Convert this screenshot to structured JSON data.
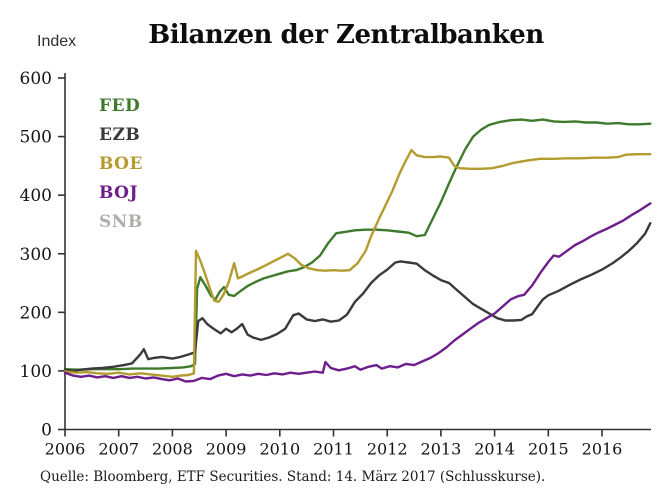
{
  "chart_data": {
    "type": "line",
    "title": "Bilanzen der Zentralbanken",
    "y_unit_label": "Index",
    "source_note": "Quelle: Bloomberg, ETF Securities. Stand: 14. März 2017 (Schlusskurse).",
    "grid": false,
    "legend_position": "top-left-inside",
    "x_axis": {
      "ticks": [
        2006,
        2007,
        2008,
        2009,
        2010,
        2011,
        2012,
        2013,
        2014,
        2015,
        2016
      ],
      "range": [
        2006,
        2016.95
      ]
    },
    "y_axis": {
      "ticks": [
        0,
        100,
        200,
        300,
        400,
        500,
        600
      ],
      "range": [
        0,
        600
      ]
    },
    "series": [
      {
        "name": "FED",
        "color": "#3e7a2c",
        "points": [
          [
            2006.0,
            103
          ],
          [
            2006.25,
            102
          ],
          [
            2006.5,
            103
          ],
          [
            2006.75,
            103
          ],
          [
            2007.0,
            103
          ],
          [
            2007.25,
            104
          ],
          [
            2007.5,
            104
          ],
          [
            2007.75,
            104
          ],
          [
            2008.0,
            105
          ],
          [
            2008.2,
            106
          ],
          [
            2008.35,
            108
          ],
          [
            2008.42,
            112
          ],
          [
            2008.46,
            240
          ],
          [
            2008.52,
            260
          ],
          [
            2008.62,
            245
          ],
          [
            2008.72,
            228
          ],
          [
            2008.8,
            222
          ],
          [
            2008.88,
            235
          ],
          [
            2008.96,
            243
          ],
          [
            2009.05,
            230
          ],
          [
            2009.15,
            228
          ],
          [
            2009.25,
            235
          ],
          [
            2009.4,
            245
          ],
          [
            2009.55,
            252
          ],
          [
            2009.7,
            258
          ],
          [
            2009.85,
            262
          ],
          [
            2010.0,
            266
          ],
          [
            2010.15,
            270
          ],
          [
            2010.3,
            272
          ],
          [
            2010.45,
            277
          ],
          [
            2010.6,
            285
          ],
          [
            2010.75,
            297
          ],
          [
            2010.9,
            318
          ],
          [
            2011.05,
            335
          ],
          [
            2011.2,
            337
          ],
          [
            2011.4,
            340
          ],
          [
            2011.6,
            341
          ],
          [
            2011.8,
            341
          ],
          [
            2012.0,
            340
          ],
          [
            2012.2,
            338
          ],
          [
            2012.4,
            336
          ],
          [
            2012.55,
            330
          ],
          [
            2012.7,
            332
          ],
          [
            2012.85,
            360
          ],
          [
            2013.0,
            388
          ],
          [
            2013.15,
            420
          ],
          [
            2013.3,
            450
          ],
          [
            2013.45,
            478
          ],
          [
            2013.6,
            500
          ],
          [
            2013.75,
            512
          ],
          [
            2013.9,
            520
          ],
          [
            2014.1,
            525
          ],
          [
            2014.3,
            528
          ],
          [
            2014.5,
            529
          ],
          [
            2014.7,
            527
          ],
          [
            2014.9,
            529
          ],
          [
            2015.1,
            526
          ],
          [
            2015.3,
            525
          ],
          [
            2015.5,
            526
          ],
          [
            2015.7,
            524
          ],
          [
            2015.9,
            524
          ],
          [
            2016.1,
            522
          ],
          [
            2016.3,
            523
          ],
          [
            2016.5,
            521
          ],
          [
            2016.7,
            521
          ],
          [
            2016.9,
            522
          ]
        ]
      },
      {
        "name": "EZB",
        "color": "#3a393b",
        "points": [
          [
            2006.0,
            102
          ],
          [
            2006.15,
            100
          ],
          [
            2006.3,
            102
          ],
          [
            2006.5,
            104
          ],
          [
            2006.7,
            105
          ],
          [
            2006.9,
            107
          ],
          [
            2007.1,
            110
          ],
          [
            2007.25,
            113
          ],
          [
            2007.4,
            128
          ],
          [
            2007.47,
            137
          ],
          [
            2007.55,
            120
          ],
          [
            2007.65,
            122
          ],
          [
            2007.8,
            124
          ],
          [
            2008.0,
            121
          ],
          [
            2008.15,
            124
          ],
          [
            2008.3,
            128
          ],
          [
            2008.42,
            132
          ],
          [
            2008.48,
            185
          ],
          [
            2008.56,
            190
          ],
          [
            2008.65,
            180
          ],
          [
            2008.78,
            171
          ],
          [
            2008.9,
            164
          ],
          [
            2009.0,
            172
          ],
          [
            2009.1,
            166
          ],
          [
            2009.2,
            172
          ],
          [
            2009.3,
            180
          ],
          [
            2009.4,
            162
          ],
          [
            2009.5,
            157
          ],
          [
            2009.65,
            153
          ],
          [
            2009.8,
            157
          ],
          [
            2009.95,
            163
          ],
          [
            2010.1,
            172
          ],
          [
            2010.25,
            195
          ],
          [
            2010.35,
            198
          ],
          [
            2010.5,
            188
          ],
          [
            2010.65,
            185
          ],
          [
            2010.8,
            188
          ],
          [
            2010.95,
            184
          ],
          [
            2011.1,
            186
          ],
          [
            2011.25,
            196
          ],
          [
            2011.4,
            218
          ],
          [
            2011.55,
            232
          ],
          [
            2011.7,
            250
          ],
          [
            2011.85,
            263
          ],
          [
            2012.0,
            273
          ],
          [
            2012.15,
            285
          ],
          [
            2012.25,
            287
          ],
          [
            2012.4,
            285
          ],
          [
            2012.55,
            283
          ],
          [
            2012.7,
            272
          ],
          [
            2012.85,
            263
          ],
          [
            2013.0,
            255
          ],
          [
            2013.15,
            250
          ],
          [
            2013.3,
            238
          ],
          [
            2013.45,
            226
          ],
          [
            2013.6,
            214
          ],
          [
            2013.75,
            206
          ],
          [
            2013.9,
            198
          ],
          [
            2014.05,
            190
          ],
          [
            2014.2,
            186
          ],
          [
            2014.35,
            186
          ],
          [
            2014.5,
            187
          ],
          [
            2014.6,
            193
          ],
          [
            2014.7,
            197
          ],
          [
            2014.8,
            210
          ],
          [
            2014.9,
            222
          ],
          [
            2015.0,
            229
          ],
          [
            2015.2,
            237
          ],
          [
            2015.4,
            247
          ],
          [
            2015.6,
            256
          ],
          [
            2015.8,
            264
          ],
          [
            2016.0,
            273
          ],
          [
            2016.2,
            284
          ],
          [
            2016.35,
            294
          ],
          [
            2016.5,
            305
          ],
          [
            2016.65,
            318
          ],
          [
            2016.8,
            334
          ],
          [
            2016.9,
            352
          ]
        ]
      },
      {
        "name": "BOE",
        "color": "#b49b30",
        "points": [
          [
            2006.0,
            99
          ],
          [
            2006.2,
            97
          ],
          [
            2006.4,
            98
          ],
          [
            2006.6,
            96
          ],
          [
            2006.8,
            95
          ],
          [
            2007.0,
            97
          ],
          [
            2007.2,
            94
          ],
          [
            2007.4,
            96
          ],
          [
            2007.6,
            94
          ],
          [
            2007.8,
            92
          ],
          [
            2008.0,
            90
          ],
          [
            2008.15,
            92
          ],
          [
            2008.3,
            93
          ],
          [
            2008.4,
            96
          ],
          [
            2008.44,
            305
          ],
          [
            2008.52,
            288
          ],
          [
            2008.6,
            268
          ],
          [
            2008.7,
            240
          ],
          [
            2008.78,
            220
          ],
          [
            2008.86,
            218
          ],
          [
            2008.95,
            230
          ],
          [
            2009.05,
            252
          ],
          [
            2009.15,
            284
          ],
          [
            2009.22,
            258
          ],
          [
            2009.32,
            262
          ],
          [
            2009.45,
            268
          ],
          [
            2009.6,
            274
          ],
          [
            2009.75,
            281
          ],
          [
            2009.9,
            288
          ],
          [
            2010.05,
            295
          ],
          [
            2010.15,
            300
          ],
          [
            2010.28,
            292
          ],
          [
            2010.4,
            281
          ],
          [
            2010.55,
            275
          ],
          [
            2010.7,
            272
          ],
          [
            2010.85,
            271
          ],
          [
            2011.0,
            272
          ],
          [
            2011.15,
            271
          ],
          [
            2011.3,
            272
          ],
          [
            2011.45,
            284
          ],
          [
            2011.6,
            305
          ],
          [
            2011.7,
            330
          ],
          [
            2011.85,
            360
          ],
          [
            2011.97,
            383
          ],
          [
            2012.1,
            408
          ],
          [
            2012.22,
            435
          ],
          [
            2012.33,
            456
          ],
          [
            2012.45,
            477
          ],
          [
            2012.55,
            468
          ],
          [
            2012.7,
            465
          ],
          [
            2012.85,
            465
          ],
          [
            2013.0,
            466
          ],
          [
            2013.15,
            464
          ],
          [
            2013.25,
            450
          ],
          [
            2013.35,
            446
          ],
          [
            2013.55,
            445
          ],
          [
            2013.75,
            445
          ],
          [
            2013.95,
            446
          ],
          [
            2014.15,
            450
          ],
          [
            2014.35,
            455
          ],
          [
            2014.6,
            459
          ],
          [
            2014.85,
            462
          ],
          [
            2015.1,
            462
          ],
          [
            2015.35,
            463
          ],
          [
            2015.6,
            463
          ],
          [
            2015.85,
            464
          ],
          [
            2016.1,
            464
          ],
          [
            2016.3,
            465
          ],
          [
            2016.45,
            469
          ],
          [
            2016.65,
            470
          ],
          [
            2016.9,
            470
          ]
        ]
      },
      {
        "name": "BOJ",
        "color": "#6e1e8c",
        "points": [
          [
            2006.0,
            97
          ],
          [
            2006.15,
            92
          ],
          [
            2006.3,
            90
          ],
          [
            2006.45,
            92
          ],
          [
            2006.6,
            89
          ],
          [
            2006.75,
            91
          ],
          [
            2006.9,
            88
          ],
          [
            2007.05,
            91
          ],
          [
            2007.2,
            88
          ],
          [
            2007.35,
            90
          ],
          [
            2007.5,
            87
          ],
          [
            2007.65,
            89
          ],
          [
            2007.8,
            86
          ],
          [
            2007.95,
            84
          ],
          [
            2008.1,
            87
          ],
          [
            2008.25,
            82
          ],
          [
            2008.4,
            83
          ],
          [
            2008.55,
            88
          ],
          [
            2008.7,
            86
          ],
          [
            2008.85,
            92
          ],
          [
            2009.0,
            95
          ],
          [
            2009.15,
            91
          ],
          [
            2009.3,
            94
          ],
          [
            2009.45,
            92
          ],
          [
            2009.6,
            95
          ],
          [
            2009.75,
            93
          ],
          [
            2009.9,
            96
          ],
          [
            2010.05,
            94
          ],
          [
            2010.2,
            97
          ],
          [
            2010.35,
            95
          ],
          [
            2010.5,
            97
          ],
          [
            2010.65,
            99
          ],
          [
            2010.8,
            97
          ],
          [
            2010.85,
            115
          ],
          [
            2010.95,
            105
          ],
          [
            2011.1,
            101
          ],
          [
            2011.25,
            104
          ],
          [
            2011.4,
            108
          ],
          [
            2011.5,
            102
          ],
          [
            2011.65,
            107
          ],
          [
            2011.8,
            110
          ],
          [
            2011.9,
            104
          ],
          [
            2012.05,
            108
          ],
          [
            2012.2,
            106
          ],
          [
            2012.35,
            112
          ],
          [
            2012.5,
            110
          ],
          [
            2012.65,
            116
          ],
          [
            2012.8,
            122
          ],
          [
            2012.95,
            130
          ],
          [
            2013.1,
            140
          ],
          [
            2013.25,
            152
          ],
          [
            2013.4,
            162
          ],
          [
            2013.55,
            172
          ],
          [
            2013.7,
            182
          ],
          [
            2013.85,
            190
          ],
          [
            2014.0,
            198
          ],
          [
            2014.15,
            210
          ],
          [
            2014.3,
            222
          ],
          [
            2014.45,
            228
          ],
          [
            2014.55,
            230
          ],
          [
            2014.7,
            246
          ],
          [
            2014.85,
            267
          ],
          [
            2015.0,
            286
          ],
          [
            2015.1,
            297
          ],
          [
            2015.2,
            295
          ],
          [
            2015.35,
            305
          ],
          [
            2015.5,
            315
          ],
          [
            2015.65,
            322
          ],
          [
            2015.8,
            330
          ],
          [
            2015.95,
            337
          ],
          [
            2016.1,
            343
          ],
          [
            2016.25,
            350
          ],
          [
            2016.4,
            357
          ],
          [
            2016.55,
            366
          ],
          [
            2016.7,
            374
          ],
          [
            2016.8,
            380
          ],
          [
            2016.9,
            386
          ]
        ]
      },
      {
        "name": "SNB",
        "color": "#b0aeac",
        "points": [],
        "note": "legend entry only — no line visible within plot area"
      }
    ]
  }
}
